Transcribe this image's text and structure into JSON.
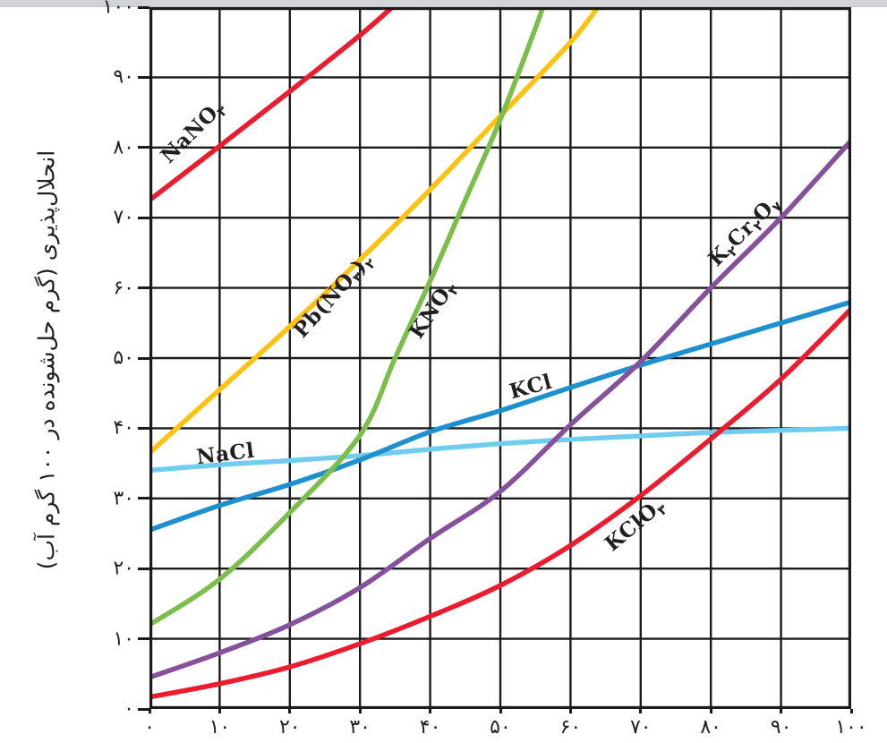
{
  "page": {
    "top_bar_color": "#d2d3d7",
    "background": "#ffffff",
    "grid_color": "#1b1b1b"
  },
  "chart_data": {
    "type": "line",
    "title": "",
    "xlabel": "",
    "ylabel": "انحلال‌پذیری (گرم حل‌شونده در ۱۰۰ گرم آب)",
    "xlim": [
      0,
      100
    ],
    "ylim": [
      0,
      100
    ],
    "grid": true,
    "grid_step": 10,
    "legend_position": "inline-labels",
    "x_tick_labels": [
      "۰",
      "۱۰",
      "۲۰",
      "۳۰",
      "۴۰",
      "۵۰",
      "۶۰",
      "۷۰",
      "۸۰",
      "۹۰",
      "۱۰۰"
    ],
    "y_tick_labels": [
      "۰",
      "۱۰",
      "۲۰",
      "۳۰",
      "۴۰",
      "۵۰",
      "۶۰",
      "۷۰",
      "۸۰",
      "۹۰",
      "۱۰۰"
    ],
    "series": [
      {
        "name": "NaCl",
        "color": "#70cdf0",
        "points": [
          [
            0,
            34
          ],
          [
            10,
            34.8
          ],
          [
            20,
            35.4
          ],
          [
            30,
            36.1
          ],
          [
            40,
            37
          ],
          [
            50,
            37.8
          ],
          [
            60,
            38.4
          ],
          [
            70,
            38.9
          ],
          [
            80,
            39.4
          ],
          [
            90,
            39.7
          ],
          [
            100,
            40
          ]
        ],
        "label": {
          "segments": [
            {
              "t": "NaCl"
            }
          ],
          "x": 10.8,
          "y": 36.4,
          "rot": -7
        }
      },
      {
        "name": "KCl",
        "color": "#1e90cf",
        "points": [
          [
            0,
            25.5
          ],
          [
            10,
            29
          ],
          [
            20,
            32
          ],
          [
            30,
            35.5
          ],
          [
            40,
            39.5
          ],
          [
            50,
            42.5
          ],
          [
            60,
            45.8
          ],
          [
            70,
            49
          ],
          [
            80,
            52
          ],
          [
            90,
            55
          ],
          [
            100,
            58
          ]
        ],
        "label": {
          "segments": [
            {
              "t": "KCl"
            }
          ],
          "x": 54.3,
          "y": 45.9,
          "rot": -15
        }
      },
      {
        "name": "NaNO3",
        "color": "#ec1c2e",
        "points": [
          [
            0,
            72.5
          ],
          [
            10,
            80.2
          ],
          [
            20,
            88
          ],
          [
            30,
            96
          ],
          [
            35.5,
            100.8
          ]
        ],
        "label": {
          "segments": [
            {
              "t": "NaNO"
            },
            {
              "t": "۳",
              "sub": true
            }
          ],
          "x": 6.1,
          "y": 82.3,
          "rot": -45
        }
      },
      {
        "name": "Pb(NO3)2",
        "color": "#ffc20e",
        "points": [
          [
            0,
            36.5
          ],
          [
            10,
            45.5
          ],
          [
            20,
            54.5
          ],
          [
            30,
            64
          ],
          [
            40,
            74
          ],
          [
            50,
            84.5
          ],
          [
            60,
            95
          ],
          [
            64.5,
            100.8
          ]
        ],
        "label": {
          "segments": [
            {
              "t": "Pb(NO"
            },
            {
              "t": "۳",
              "sub": true
            },
            {
              "t": ")"
            },
            {
              "t": "۲",
              "sub": true
            }
          ],
          "x": 26.1,
          "y": 58.9,
          "rot": -48
        }
      },
      {
        "name": "KNO3",
        "color": "#7bbf4a",
        "points": [
          [
            0,
            12
          ],
          [
            10,
            18.5
          ],
          [
            20,
            28
          ],
          [
            30,
            39
          ],
          [
            35,
            50
          ],
          [
            40,
            61
          ],
          [
            45,
            72.5
          ],
          [
            50,
            84
          ],
          [
            55,
            97
          ],
          [
            56.3,
            100.8
          ]
        ],
        "label": {
          "segments": [
            {
              "t": "KNO"
            },
            {
              "t": "۳",
              "sub": true
            }
          ],
          "x": 40.3,
          "y": 56.9,
          "rot": -56
        }
      },
      {
        "name": "K2Cr2O7",
        "color": "#86519c",
        "points": [
          [
            0,
            4.5
          ],
          [
            10,
            8
          ],
          [
            20,
            12
          ],
          [
            30,
            17.3
          ],
          [
            40,
            24.3
          ],
          [
            50,
            31
          ],
          [
            60,
            40.5
          ],
          [
            70,
            49.5
          ],
          [
            80,
            60
          ],
          [
            90,
            70
          ],
          [
            100,
            81
          ]
        ],
        "label": {
          "segments": [
            {
              "t": "K"
            },
            {
              "t": "۲",
              "sub": true
            },
            {
              "t": "Cr"
            },
            {
              "t": "۲",
              "sub": true
            },
            {
              "t": "O"
            },
            {
              "t": "۷",
              "sub": true
            }
          ],
          "x": 84.7,
          "y": 68.1,
          "rot": -45
        }
      },
      {
        "name": "KClO3",
        "color": "#ec1c2e",
        "points": [
          [
            0,
            1.7
          ],
          [
            10,
            3.6
          ],
          [
            20,
            6
          ],
          [
            30,
            9.3
          ],
          [
            40,
            13.2
          ],
          [
            50,
            17.6
          ],
          [
            60,
            23.3
          ],
          [
            70,
            30.4
          ],
          [
            80,
            38.5
          ],
          [
            90,
            47
          ],
          [
            100,
            57
          ]
        ],
        "label": {
          "segments": [
            {
              "t": "KClO"
            },
            {
              "t": "۳",
              "sub": true
            }
          ],
          "x": 69.1,
          "y": 26.3,
          "rot": -40
        }
      }
    ]
  }
}
